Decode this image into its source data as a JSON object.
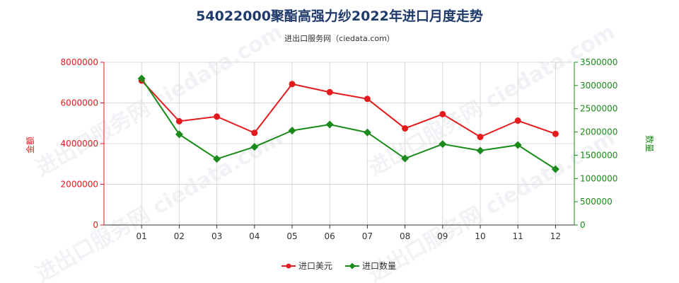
{
  "chart_data": {
    "type": "line",
    "title": "54022000聚酯高强力纱2022年进口月度走势",
    "subtitle": "进出口服务网（ciedata.com）",
    "categories": [
      "01",
      "02",
      "03",
      "04",
      "05",
      "06",
      "07",
      "08",
      "09",
      "10",
      "11",
      "12"
    ],
    "y_left_label": "金额",
    "y_right_label": "数量",
    "y_left_ticks": [
      "0",
      "2000000",
      "4000000",
      "6000000",
      "8000000"
    ],
    "y_right_ticks": [
      "0",
      "500000",
      "1000000",
      "1500000",
      "2000000",
      "2500000",
      "3000000",
      "3500000"
    ],
    "y_left_lim": [
      0,
      8000000
    ],
    "y_right_lim": [
      0,
      3500000
    ],
    "grid": true,
    "legend_position": "bottom",
    "watermark": "进出口服务网 ciedata.com",
    "series": [
      {
        "name": "进口美元",
        "axis": "left",
        "color": "#e41a1c",
        "marker": "circle",
        "values": [
          7100000,
          5100000,
          5330000,
          4530000,
          6930000,
          6530000,
          6200000,
          4750000,
          5450000,
          4330000,
          5130000,
          4480000
        ]
      },
      {
        "name": "进口数量",
        "axis": "right",
        "color": "#1a8a1a",
        "marker": "diamond",
        "values": [
          3150000,
          1950000,
          1420000,
          1680000,
          2030000,
          2160000,
          1990000,
          1430000,
          1740000,
          1600000,
          1720000,
          1200000
        ]
      }
    ]
  },
  "colors": {
    "left_axis": "#e41a1c",
    "right_axis": "#1a8a1a",
    "grid": "#d9d9d9",
    "title": "#1f3a6b"
  }
}
